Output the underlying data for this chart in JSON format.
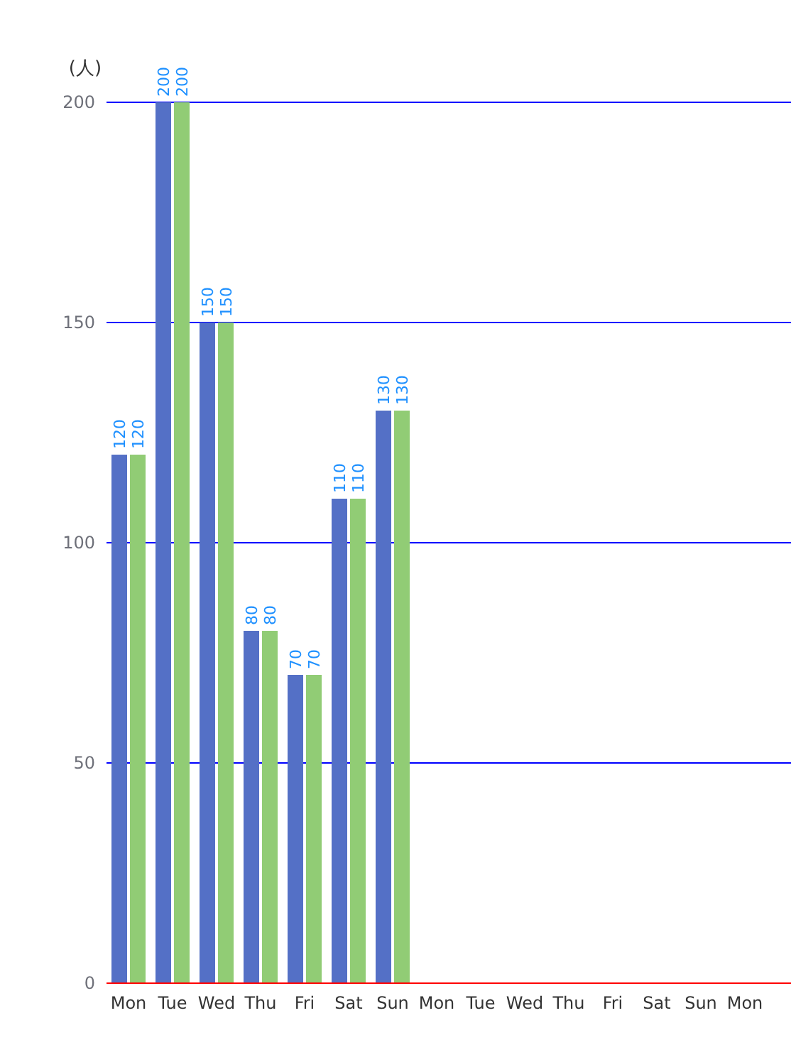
{
  "chart_data": {
    "type": "bar",
    "ylabel": "(人)",
    "categories": [
      "Mon",
      "Tue",
      "Wed",
      "Thu",
      "Fri",
      "Sat",
      "Sun",
      "Mon",
      "Tue",
      "Wed",
      "Thu",
      "Fri",
      "Sat",
      "Sun",
      "Mon"
    ],
    "series": [
      {
        "color": "#5470c6",
        "values": [
          120,
          200,
          150,
          80,
          70,
          110,
          130,
          null,
          null,
          null,
          null,
          null,
          null,
          null,
          null
        ]
      },
      {
        "color": "#91cc75",
        "values": [
          120,
          200,
          150,
          80,
          70,
          110,
          130,
          null,
          null,
          null,
          null,
          null,
          null,
          null,
          null
        ]
      }
    ],
    "ylim": [
      0,
      200
    ],
    "yticks": [
      0,
      50,
      100,
      150,
      200
    ],
    "grid": "y",
    "data_labels": true
  }
}
